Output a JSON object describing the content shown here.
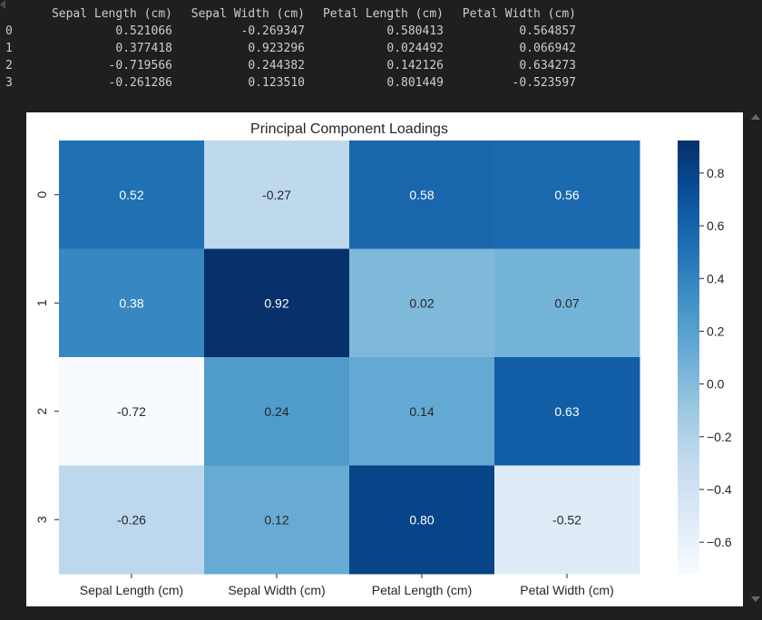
{
  "dataframe": {
    "columns": [
      "Sepal Length (cm)",
      "Sepal Width (cm)",
      "Petal Length (cm)",
      "Petal Width (cm)"
    ],
    "rows": [
      {
        "index": "0",
        "cells": [
          "0.521066",
          "-0.269347",
          "0.580413",
          "0.564857"
        ]
      },
      {
        "index": "1",
        "cells": [
          "0.377418",
          "0.923296",
          "0.024492",
          "0.066942"
        ]
      },
      {
        "index": "2",
        "cells": [
          "-0.719566",
          "0.244382",
          "0.142126",
          "0.634273"
        ]
      },
      {
        "index": "3",
        "cells": [
          "-0.261286",
          "0.123510",
          "0.801449",
          "-0.523597"
        ]
      }
    ]
  },
  "chart_data": {
    "type": "heatmap",
    "title": "Principal Component Loadings",
    "x_categories": [
      "Sepal Length (cm)",
      "Sepal Width (cm)",
      "Petal Length (cm)",
      "Petal Width (cm)"
    ],
    "y_categories": [
      "0",
      "1",
      "2",
      "3"
    ],
    "values": [
      [
        0.521066,
        -0.269347,
        0.580413,
        0.564857
      ],
      [
        0.377418,
        0.923296,
        0.024492,
        0.066942
      ],
      [
        -0.719566,
        0.244382,
        0.142126,
        0.634273
      ],
      [
        -0.261286,
        0.12351,
        0.801449,
        -0.523597
      ]
    ],
    "annotations": [
      [
        "0.52",
        "-0.27",
        "0.58",
        "0.56"
      ],
      [
        "0.38",
        "0.92",
        "0.02",
        "0.07"
      ],
      [
        "-0.72",
        "0.24",
        "0.14",
        "0.63"
      ],
      [
        "-0.26",
        "0.12",
        "0.80",
        "-0.52"
      ]
    ],
    "colormap": "Blues",
    "vmin": -0.719566,
    "vmax": 0.923296,
    "colorbar_ticks": [
      0.8,
      0.6,
      0.4,
      0.2,
      0.0,
      -0.2,
      -0.4,
      -0.6
    ],
    "colorbar_tick_labels": [
      "0.8",
      "0.6",
      "0.4",
      "0.2",
      "0.0",
      "−0.2",
      "−0.4",
      "−0.6"
    ],
    "xlabel": "",
    "ylabel": ""
  }
}
